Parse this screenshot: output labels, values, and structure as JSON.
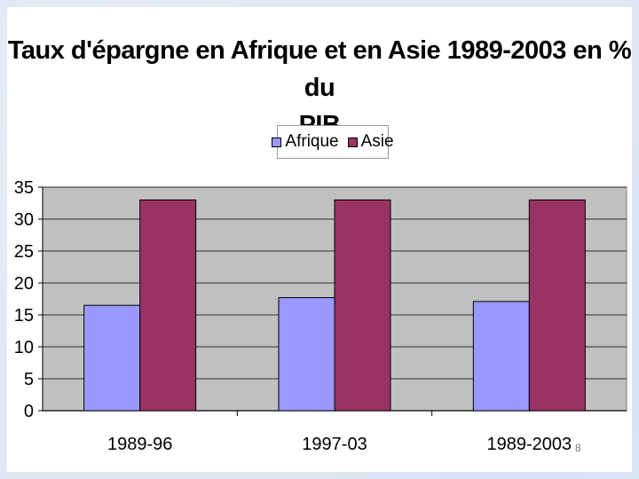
{
  "slide": {
    "page_number": "8"
  },
  "chart_data": {
    "type": "bar",
    "title_lines": [
      "Taux d'épargne en Afrique et en Asie 1989-2003 en % du",
      "PIB"
    ],
    "categories": [
      "1989-96",
      "1997-03",
      "1989-2003"
    ],
    "series": [
      {
        "name": "Afrique",
        "values": [
          16.5,
          17.7,
          17.1
        ],
        "color": "#9999ff"
      },
      {
        "name": "Asie",
        "values": [
          33,
          33,
          33
        ],
        "color": "#993366"
      }
    ],
    "xlabel": "",
    "ylabel": "",
    "ylim": [
      0,
      35
    ],
    "yticks": [
      "0",
      "5",
      "10",
      "15",
      "20",
      "25",
      "30",
      "35"
    ],
    "ytick_values": [
      0,
      5,
      10,
      15,
      20,
      25,
      30,
      35
    ],
    "grid": true,
    "plot_background": "#c0c0c0",
    "legend_position": "top-center"
  }
}
